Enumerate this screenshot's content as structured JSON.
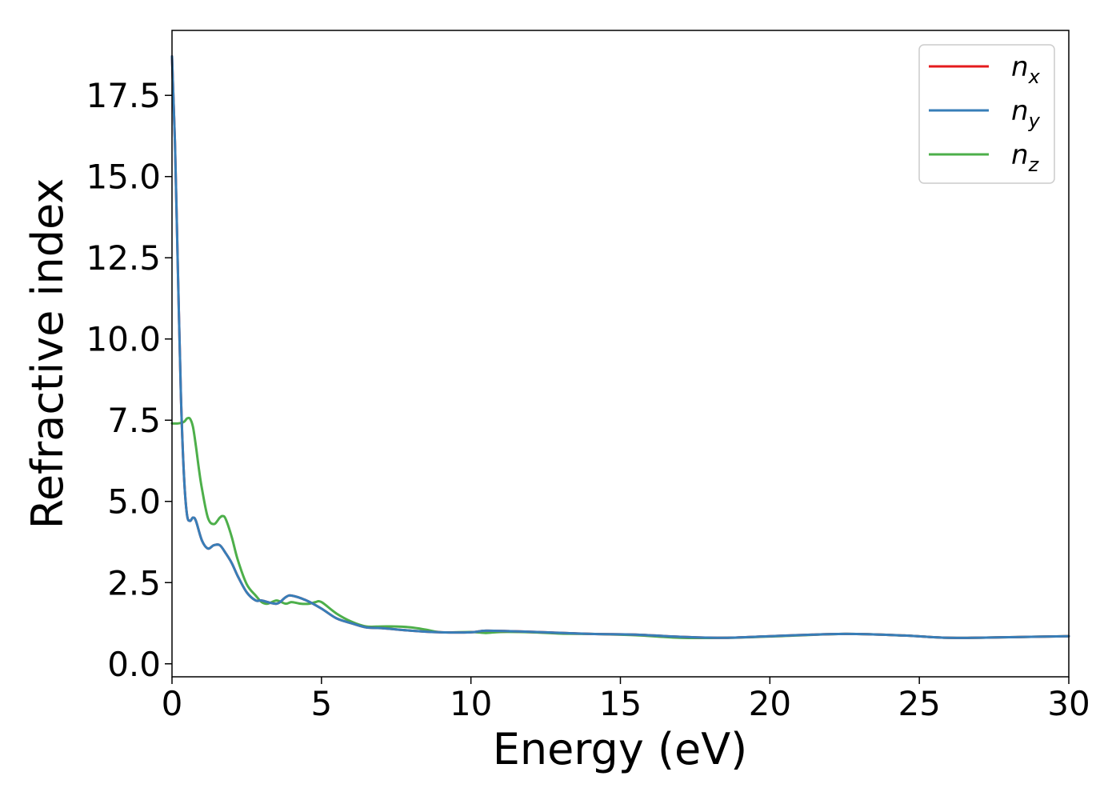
{
  "chart_data": {
    "type": "line",
    "xlabel": "Energy (eV)",
    "ylabel": "Refractive index",
    "xlim": [
      0,
      30
    ],
    "ylim": [
      -0.4,
      19.5
    ],
    "xticks": [
      0,
      5,
      10,
      15,
      20,
      25,
      30
    ],
    "xtick_labels": [
      "0",
      "5",
      "10",
      "15",
      "20",
      "25",
      "30"
    ],
    "yticks": [
      0,
      2.5,
      5,
      7.5,
      10,
      12.5,
      15,
      17.5
    ],
    "ytick_labels": [
      "0.0",
      "2.5",
      "5.0",
      "7.5",
      "10.0",
      "12.5",
      "15.0",
      "17.5"
    ],
    "grid": false,
    "legend_position": "top-right",
    "series": [
      {
        "name": "n_x",
        "base": "n",
        "sub": "x",
        "color": "#e41a1c",
        "x": [
          0,
          0.1,
          0.2,
          0.3,
          0.4,
          0.5,
          0.6,
          0.7,
          0.8,
          1.0,
          1.2,
          1.4,
          1.6,
          1.8,
          2.0,
          2.2,
          2.5,
          2.8,
          3.0,
          3.5,
          3.8,
          4.0,
          4.5,
          5.0,
          5.5,
          6.0,
          6.5,
          7.0,
          8.0,
          9.0,
          10.0,
          10.5,
          11.5,
          12.5,
          14.0,
          15.5,
          17.0,
          18.5,
          20.0,
          22.5,
          24.5,
          26.0,
          28.0,
          30.0
        ],
        "y": [
          18.7,
          16.0,
          12.0,
          8.2,
          5.8,
          4.6,
          4.4,
          4.5,
          4.4,
          3.8,
          3.55,
          3.65,
          3.65,
          3.4,
          3.1,
          2.7,
          2.2,
          1.95,
          1.95,
          1.85,
          2.05,
          2.1,
          1.95,
          1.7,
          1.4,
          1.25,
          1.12,
          1.1,
          1.02,
          0.97,
          0.97,
          1.02,
          1.0,
          0.97,
          0.92,
          0.9,
          0.83,
          0.8,
          0.85,
          0.92,
          0.87,
          0.8,
          0.82,
          0.85
        ]
      },
      {
        "name": "n_y",
        "base": "n",
        "sub": "y",
        "color": "#377eb8",
        "x": [
          0,
          0.1,
          0.2,
          0.3,
          0.4,
          0.5,
          0.6,
          0.7,
          0.8,
          1.0,
          1.2,
          1.4,
          1.6,
          1.8,
          2.0,
          2.2,
          2.5,
          2.8,
          3.0,
          3.5,
          3.8,
          4.0,
          4.5,
          5.0,
          5.5,
          6.0,
          6.5,
          7.0,
          8.0,
          9.0,
          10.0,
          10.5,
          11.5,
          12.5,
          14.0,
          15.5,
          17.0,
          18.5,
          20.0,
          22.5,
          24.5,
          26.0,
          28.0,
          30.0
        ],
        "y": [
          18.7,
          16.0,
          12.0,
          8.2,
          5.8,
          4.6,
          4.4,
          4.5,
          4.4,
          3.8,
          3.55,
          3.65,
          3.65,
          3.4,
          3.1,
          2.7,
          2.2,
          1.95,
          1.95,
          1.85,
          2.05,
          2.1,
          1.95,
          1.7,
          1.4,
          1.25,
          1.12,
          1.1,
          1.02,
          0.97,
          0.97,
          1.02,
          1.0,
          0.97,
          0.92,
          0.9,
          0.83,
          0.8,
          0.85,
          0.92,
          0.87,
          0.8,
          0.82,
          0.85
        ]
      },
      {
        "name": "n_z",
        "base": "n",
        "sub": "z",
        "color": "#4daf4a",
        "x": [
          0,
          0.2,
          0.4,
          0.5,
          0.6,
          0.7,
          0.8,
          0.9,
          1.0,
          1.2,
          1.4,
          1.6,
          1.7,
          1.8,
          2.0,
          2.2,
          2.5,
          2.8,
          3.0,
          3.2,
          3.5,
          3.8,
          4.0,
          4.3,
          4.6,
          4.8,
          5.0,
          5.5,
          6.0,
          6.5,
          7.0,
          7.5,
          8.0,
          8.5,
          9.0,
          10.0,
          10.5,
          11.0,
          12.0,
          13.0,
          14.0,
          15.5,
          17.0,
          18.5,
          20.0,
          22.5,
          24.5,
          26.0,
          28.0,
          30.0
        ],
        "y": [
          7.4,
          7.4,
          7.45,
          7.55,
          7.55,
          7.3,
          6.7,
          6.0,
          5.4,
          4.5,
          4.3,
          4.5,
          4.55,
          4.45,
          3.9,
          3.2,
          2.45,
          2.1,
          1.9,
          1.85,
          1.95,
          1.85,
          1.9,
          1.85,
          1.85,
          1.9,
          1.9,
          1.55,
          1.3,
          1.15,
          1.15,
          1.15,
          1.12,
          1.05,
          0.97,
          0.98,
          0.95,
          0.98,
          0.97,
          0.93,
          0.92,
          0.88,
          0.8,
          0.8,
          0.84,
          0.92,
          0.87,
          0.8,
          0.82,
          0.85
        ]
      }
    ]
  }
}
